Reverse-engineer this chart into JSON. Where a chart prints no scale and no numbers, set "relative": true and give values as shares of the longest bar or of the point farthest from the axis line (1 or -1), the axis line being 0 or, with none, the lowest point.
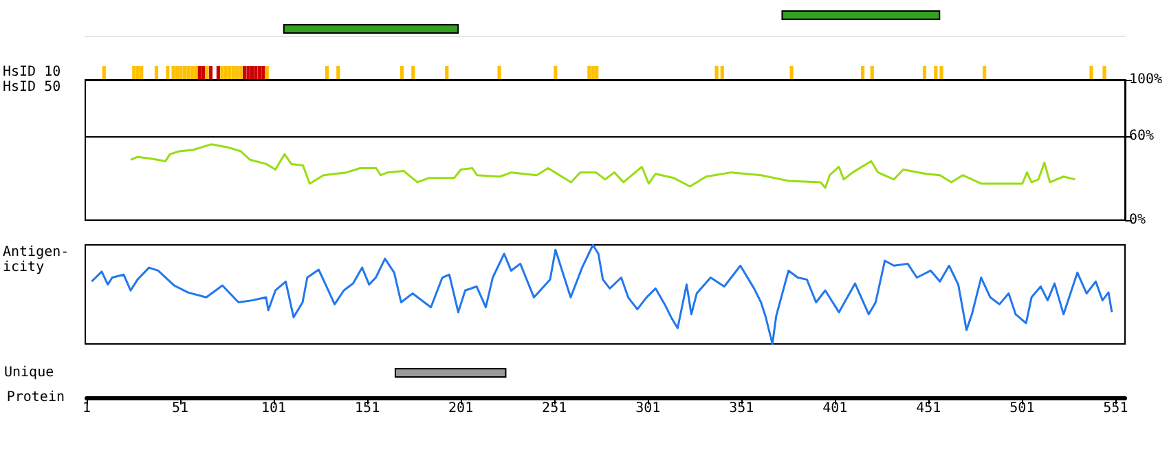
{
  "chart_data": [
    {
      "type": "bar",
      "orientation": "horizontal",
      "categories": [
        null,
        null
      ],
      "base": [
        373,
        107
      ],
      "values": [
        84,
        93
      ],
      "color": "#33a020",
      "xlim": [
        1,
        556
      ],
      "tick_labels": false
    },
    {
      "type": "bar",
      "relative": true,
      "ylabel": "HsID 10",
      "xlim": [
        1,
        556
      ],
      "tick_labels": false,
      "x": [
        11,
        27,
        29,
        31,
        39,
        45,
        48,
        50,
        52,
        54,
        56,
        58,
        60,
        62,
        64,
        66,
        68,
        72,
        74,
        76,
        78,
        80,
        82,
        84,
        86,
        88,
        90,
        92,
        94,
        96,
        98,
        130,
        136,
        170,
        176,
        194,
        222,
        252,
        270,
        272,
        274,
        338,
        341,
        378,
        416,
        421,
        449,
        455,
        458,
        481,
        538,
        545
      ],
      "values": [
        1,
        1,
        1,
        1,
        1,
        1,
        1,
        1,
        1,
        1,
        1,
        1,
        1,
        1,
        1,
        1,
        1,
        1,
        1,
        1,
        1,
        1,
        1,
        1,
        1,
        1,
        1,
        1,
        1,
        1,
        1,
        1,
        1,
        1,
        1,
        1,
        1,
        1,
        1,
        1,
        1,
        1,
        1,
        1,
        1,
        1,
        1,
        1,
        1,
        1,
        1,
        1
      ],
      "colors": [
        "#ffc000",
        "#ffc000",
        "#ffc000",
        "#ffc000",
        "#ffc000",
        "#ffc000",
        "#ffc000",
        "#ffc000",
        "#ffc000",
        "#ffc000",
        "#ffc000",
        "#ffc000",
        "#ffc000",
        "#cc0000",
        "#cc0000",
        "#ffc000",
        "#cc0000",
        "#cc0000",
        "#ffc000",
        "#ffc000",
        "#ffc000",
        "#ffc000",
        "#ffc000",
        "#ffc000",
        "#cc0000",
        "#cc0000",
        "#cc0000",
        "#cc0000",
        "#cc0000",
        "#cc0000",
        "#ffc000",
        "#ffc000",
        "#ffc000",
        "#ffc000",
        "#ffc000",
        "#ffc000",
        "#ffc000",
        "#ffc000",
        "#ffc000",
        "#ffc000",
        "#ffc000",
        "#ffc000",
        "#ffc000",
        "#ffc000",
        "#ffc000",
        "#ffc000",
        "#ffc000",
        "#ffc000",
        "#ffc000",
        "#ffc000",
        "#ffc000",
        "#ffc000"
      ]
    },
    {
      "type": "line",
      "ylabel": "HsID 50",
      "marker": "none",
      "xlim": [
        1,
        556
      ],
      "ylim": [
        0,
        100
      ],
      "tick_labels": "y",
      "yticks": [
        {
          "value": 0,
          "label": "0%"
        },
        {
          "value": 60,
          "label": "60%"
        },
        {
          "value": 100,
          "label": "100%"
        }
      ],
      "ref_lines": [
        {
          "axis": "y",
          "value": 60,
          "color": "#000000"
        }
      ],
      "series": [
        {
          "color": "#99dd11",
          "x": [
            25.2,
            28.9,
            35.2,
            43.8,
            46.2,
            51,
            58.4,
            68.2,
            76.8,
            84.1,
            89,
            97.6,
            102.5,
            107.4,
            111,
            117.2,
            120.8,
            128.2,
            140.4,
            147.7,
            156.3,
            158.7,
            162.4,
            171,
            178.3,
            184.4,
            197.9,
            201.5,
            207.6,
            210.1,
            222.3,
            228.5,
            241.9,
            248.1,
            251.7,
            260.3,
            265.2,
            273.6,
            278.5,
            283.4,
            288.3,
            298.1,
            301.8,
            305.4,
            315.2,
            323.8,
            332.4,
            345.8,
            361.7,
            376.4,
            393.5,
            396,
            398.4,
            403.3,
            405.8,
            410.7,
            420.5,
            424.1,
            432.7,
            437.6,
            449.8,
            457.2,
            463.3,
            469.4,
            479.2,
            501.2,
            503.7,
            506.1,
            509.8,
            513,
            515.9,
            523.2,
            529.4
          ],
          "values": [
            43,
            45,
            44,
            42,
            47,
            49,
            50,
            54,
            52,
            49,
            43,
            40,
            36,
            47,
            40,
            39,
            26,
            32,
            34,
            37,
            37,
            32,
            34,
            35,
            27,
            30,
            30,
            36,
            37,
            32,
            31,
            34,
            32,
            37,
            34,
            27,
            34,
            34,
            29,
            34,
            27,
            38,
            26,
            33,
            30,
            24,
            31,
            34,
            32,
            28,
            27,
            23,
            32,
            38,
            29,
            34,
            42,
            34,
            29,
            36,
            33,
            32,
            27,
            32,
            26,
            26,
            34,
            27,
            29,
            41,
            27,
            31,
            29
          ]
        }
      ]
    },
    {
      "type": "line",
      "relative": true,
      "ylabel": "Antigen-\nicity",
      "marker": "none",
      "xlim": [
        1,
        556
      ],
      "tick_labels": false,
      "series": [
        {
          "color": "#2277ee",
          "x": [
            4.4,
            9.8,
            13,
            15.4,
            21.5,
            25.2,
            28.9,
            35,
            39.9,
            48.5,
            55.8,
            65.6,
            74.2,
            82.8,
            90.1,
            97.5,
            98.7,
            102.5,
            108,
            112.2,
            117,
            119.5,
            125.6,
            129.3,
            134.1,
            139,
            143.9,
            148.8,
            152.5,
            156.1,
            161,
            165.9,
            169.6,
            175.7,
            185.5,
            191.6,
            195.3,
            200.1,
            203.8,
            209.9,
            214.8,
            218.5,
            224.6,
            228.3,
            233.2,
            240.5,
            249.1,
            252,
            260.1,
            266.2,
            272,
            274.9,
            277.3,
            281,
            287.1,
            290.8,
            295.7,
            300.6,
            305.4,
            310.3,
            314,
            317.2,
            322,
            324.5,
            327.4,
            334.8,
            342.1,
            350.7,
            358,
            361.7,
            364.1,
            367.8,
            369.8,
            376.4,
            381.3,
            386.2,
            391.1,
            396,
            403.3,
            411.9,
            419.2,
            422.9,
            427.8,
            432.7,
            440,
            444.9,
            452.3,
            457.2,
            462.1,
            467,
            471.4,
            474.3,
            479.2,
            484.1,
            489,
            493.9,
            497.6,
            503.2,
            506.1,
            511,
            514.7,
            518.4,
            523.2,
            530.6,
            535.5,
            540.4,
            544,
            547.2,
            549
          ],
          "values": [
            0.63,
            0.73,
            0.6,
            0.67,
            0.7,
            0.54,
            0.65,
            0.77,
            0.74,
            0.59,
            0.52,
            0.47,
            0.59,
            0.42,
            0.44,
            0.47,
            0.34,
            0.54,
            0.63,
            0.27,
            0.42,
            0.67,
            0.75,
            0.6,
            0.4,
            0.54,
            0.61,
            0.77,
            0.6,
            0.67,
            0.86,
            0.72,
            0.42,
            0.51,
            0.37,
            0.67,
            0.7,
            0.32,
            0.54,
            0.58,
            0.37,
            0.67,
            0.91,
            0.74,
            0.81,
            0.47,
            0.65,
            0.95,
            0.47,
            0.77,
            1,
            0.91,
            0.65,
            0.56,
            0.67,
            0.47,
            0.35,
            0.47,
            0.56,
            0.4,
            0.26,
            0.16,
            0.6,
            0.3,
            0.51,
            0.67,
            0.58,
            0.79,
            0.56,
            0.42,
            0.28,
            0,
            0.28,
            0.74,
            0.67,
            0.65,
            0.42,
            0.54,
            0.32,
            0.61,
            0.3,
            0.42,
            0.84,
            0.79,
            0.81,
            0.67,
            0.74,
            0.63,
            0.79,
            0.6,
            0.14,
            0.3,
            0.67,
            0.47,
            0.4,
            0.51,
            0.3,
            0.21,
            0.47,
            0.58,
            0.44,
            0.61,
            0.3,
            0.72,
            0.51,
            0.63,
            0.44,
            0.52,
            0.32
          ]
        }
      ]
    },
    {
      "type": "bar",
      "orientation": "horizontal",
      "categories": [
        "Unique"
      ],
      "base": [
        166
      ],
      "values": [
        59
      ],
      "color": "#999999",
      "xlabel": "Protein",
      "xlim": [
        1,
        556
      ],
      "xticks": [
        1,
        51,
        101,
        151,
        201,
        251,
        301,
        351,
        401,
        451,
        501,
        551
      ]
    }
  ]
}
